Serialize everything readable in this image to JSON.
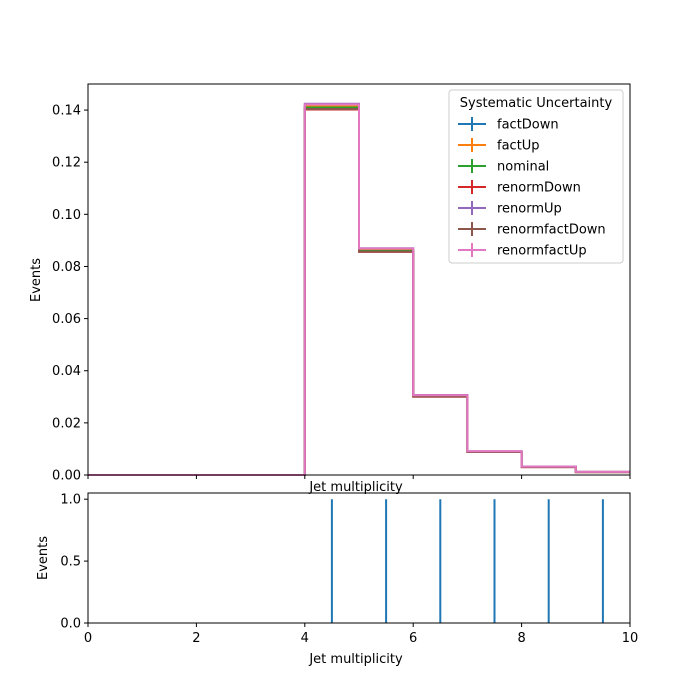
{
  "chart_data": [
    {
      "type": "step",
      "title": "",
      "xlabel": "Jet multiplicity",
      "ylabel": "Events",
      "xlim": [
        0,
        10
      ],
      "ylim": [
        0,
        0.15
      ],
      "xticks": [
        "0",
        "2",
        "4",
        "6",
        "8",
        "10"
      ],
      "yticks": [
        "0.00",
        "0.02",
        "0.04",
        "0.06",
        "0.08",
        "0.10",
        "0.12",
        "0.14"
      ],
      "bin_edges": [
        0,
        1,
        2,
        3,
        4,
        5,
        6,
        7,
        8,
        9,
        10
      ],
      "legend": {
        "title": "Systematic Uncertainty",
        "placement": "top-right"
      },
      "grid": false,
      "series": [
        {
          "name": "factDown",
          "color": "#1f77b4",
          "values": [
            0,
            0,
            0,
            0,
            0.1414,
            0.0862,
            0.0304,
            0.009,
            0.0031,
            0.0012
          ]
        },
        {
          "name": "factUp",
          "color": "#ff7f0e",
          "values": [
            0,
            0,
            0,
            0,
            0.1414,
            0.0862,
            0.0304,
            0.009,
            0.0031,
            0.0012
          ]
        },
        {
          "name": "nominal",
          "color": "#2ca02c",
          "values": [
            0,
            0,
            0,
            0,
            0.141,
            0.086,
            0.0302,
            0.0089,
            0.0031,
            0.0011
          ]
        },
        {
          "name": "renormDown",
          "color": "#d62728",
          "values": [
            0,
            0,
            0,
            0,
            0.1402,
            0.0856,
            0.03,
            0.0088,
            0.003,
            0.0011
          ]
        },
        {
          "name": "renormUp",
          "color": "#9467bd",
          "values": [
            0,
            0,
            0,
            0,
            0.1424,
            0.087,
            0.0307,
            0.0091,
            0.0032,
            0.0012
          ]
        },
        {
          "name": "renormfactDown",
          "color": "#8c564b",
          "values": [
            0,
            0,
            0,
            0,
            0.1404,
            0.0857,
            0.0301,
            0.0088,
            0.003,
            0.0011
          ]
        },
        {
          "name": "renormfactUp",
          "color": "#e377c2",
          "values": [
            0,
            0,
            0,
            0,
            0.1422,
            0.0869,
            0.0306,
            0.0091,
            0.0032,
            0.0012
          ]
        }
      ]
    },
    {
      "type": "line",
      "title": "",
      "xlabel": "Jet multiplicity",
      "ylabel": "Events",
      "xlim": [
        0,
        10
      ],
      "ylim": [
        0,
        1.05
      ],
      "xticks": [
        "0",
        "2",
        "4",
        "6",
        "8",
        "10"
      ],
      "yticks": [
        "0.0",
        "0.5",
        "1.0"
      ],
      "grid": false,
      "series": [
        {
          "color": "#1f77b4",
          "x": [
            4.5,
            5.5,
            6.5,
            7.5,
            8.5,
            9.5
          ],
          "values": [
            1,
            1,
            1,
            1,
            1,
            1
          ]
        }
      ]
    }
  ]
}
